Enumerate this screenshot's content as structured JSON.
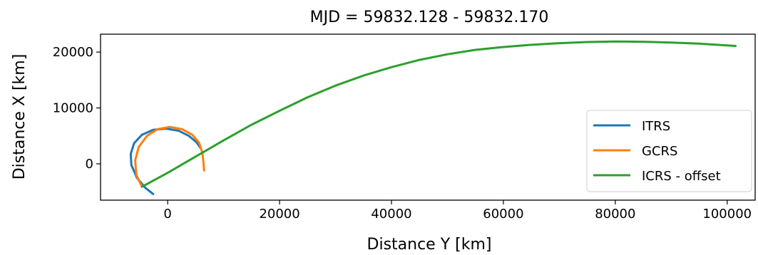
{
  "chart_data": {
    "type": "line",
    "title": "MJD = 59832.128 - 59832.170",
    "xlabel": "Distance Y [km]",
    "ylabel": "Distance X [km]",
    "xlim": [
      -12000,
      105000
    ],
    "ylim": [
      -6500,
      23200
    ],
    "xticks": [
      0,
      20000,
      40000,
      60000,
      80000,
      100000
    ],
    "xtick_labels": [
      "0",
      "20000",
      "40000",
      "60000",
      "80000",
      "100000"
    ],
    "yticks": [
      0,
      10000,
      20000
    ],
    "ytick_labels": [
      "0",
      "10000",
      "20000"
    ],
    "grid": false,
    "legend_position": "lower-right",
    "series": [
      {
        "name": "ITRS",
        "color": "#1f77b4",
        "points": [
          [
            -2600,
            -5400
          ],
          [
            -4000,
            -4300
          ],
          [
            -5500,
            -2500
          ],
          [
            -6500,
            -200
          ],
          [
            -6600,
            1800
          ],
          [
            -6000,
            3700
          ],
          [
            -4600,
            5200
          ],
          [
            -2600,
            6100
          ],
          [
            -200,
            6300
          ],
          [
            2000,
            5900
          ],
          [
            3800,
            5000
          ],
          [
            5100,
            3900
          ],
          [
            5900,
            2800
          ]
        ]
      },
      {
        "name": "GCRS",
        "color": "#ff7f0e",
        "points": [
          [
            -4600,
            -4100
          ],
          [
            -5600,
            -2000
          ],
          [
            -5800,
            600
          ],
          [
            -5200,
            3000
          ],
          [
            -3700,
            5000
          ],
          [
            -1800,
            6200
          ],
          [
            400,
            6600
          ],
          [
            2600,
            6200
          ],
          [
            4400,
            5200
          ],
          [
            5600,
            3800
          ],
          [
            6200,
            2000
          ],
          [
            6400,
            200
          ],
          [
            6500,
            -1200
          ]
        ]
      },
      {
        "name": "ICRS - offset",
        "color": "#2ca02c",
        "points": [
          [
            -4600,
            -4100
          ],
          [
            0,
            -1600
          ],
          [
            5000,
            1300
          ],
          [
            10000,
            4200
          ],
          [
            15000,
            7000
          ],
          [
            20000,
            9500
          ],
          [
            25000,
            11900
          ],
          [
            30000,
            14000
          ],
          [
            35000,
            15800
          ],
          [
            40000,
            17300
          ],
          [
            45000,
            18600
          ],
          [
            50000,
            19600
          ],
          [
            55000,
            20400
          ],
          [
            60000,
            20900
          ],
          [
            65000,
            21300
          ],
          [
            70000,
            21600
          ],
          [
            75000,
            21800
          ],
          [
            80000,
            21900
          ],
          [
            85000,
            21850
          ],
          [
            90000,
            21700
          ],
          [
            95000,
            21500
          ],
          [
            101500,
            21100
          ]
        ]
      }
    ]
  }
}
